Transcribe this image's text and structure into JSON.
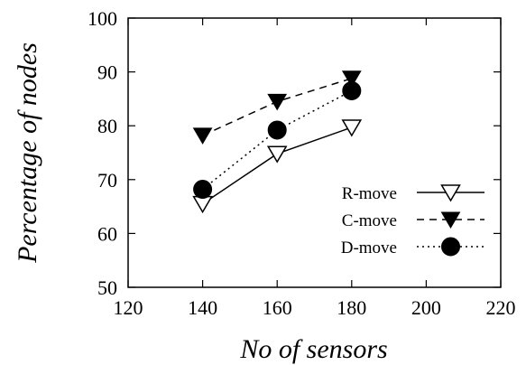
{
  "chart_data": {
    "type": "line",
    "xlabel": "No of sensors",
    "ylabel": "Percentage of nodes",
    "xlim": [
      120,
      220
    ],
    "ylim": [
      50,
      100
    ],
    "xticks": [
      120,
      140,
      160,
      180,
      200,
      220
    ],
    "yticks": [
      50,
      60,
      70,
      80,
      90,
      100
    ],
    "grid": false,
    "legend_position": "right",
    "series": [
      {
        "name": "R-move",
        "marker": "open-down-triangle",
        "line": "solid",
        "x": [
          140,
          160,
          180
        ],
        "y": [
          65.5,
          74.8,
          79.7
        ]
      },
      {
        "name": "C-move",
        "marker": "filled-down-triangle",
        "line": "dashed",
        "x": [
          140,
          160,
          180
        ],
        "y": [
          78.2,
          84.5,
          88.8
        ]
      },
      {
        "name": "D-move",
        "marker": "filled-circle",
        "line": "dotted",
        "x": [
          140,
          160,
          180
        ],
        "y": [
          68.2,
          79.2,
          86.5
        ]
      }
    ]
  }
}
